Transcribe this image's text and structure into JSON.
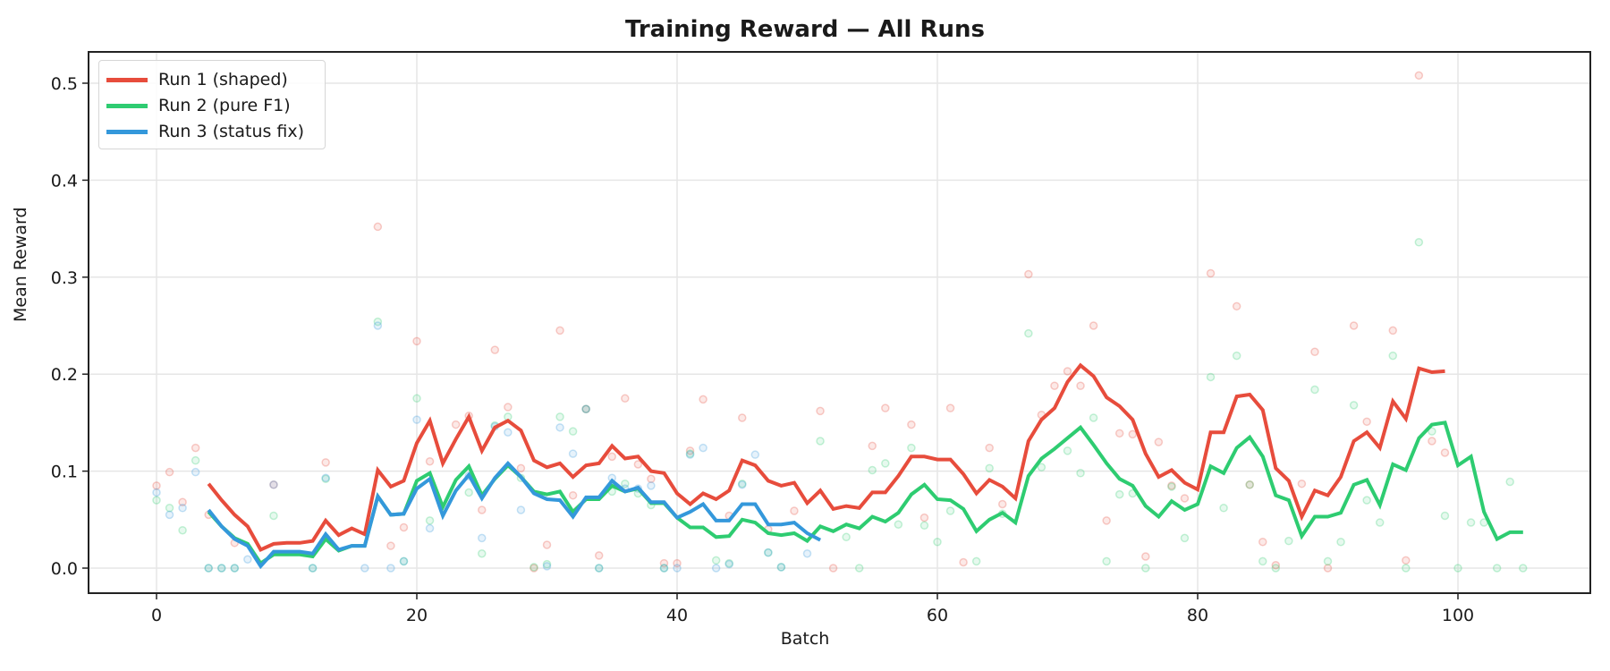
{
  "chart_data": {
    "type": "line",
    "title": "Training Reward — All Runs",
    "xlabel": "Batch",
    "ylabel": "Mean Reward",
    "xlim": [
      -5,
      111
    ],
    "ylim": [
      -0.027,
      0.53
    ],
    "xticks": [
      0,
      20,
      40,
      60,
      80,
      100
    ],
    "yticks": [
      0.0,
      0.1,
      0.2,
      0.3,
      0.4,
      0.5
    ],
    "xtick_labels": [
      "0",
      "20",
      "40",
      "60",
      "80",
      "100"
    ],
    "ytick_labels": [
      "0.0",
      "0.1",
      "0.2",
      "0.3",
      "0.4",
      "0.5"
    ],
    "grid": true,
    "legend_position": "upper left",
    "series": [
      {
        "name": "Run 1 (shaped)",
        "color": "#e74c3c",
        "x_start": 4,
        "values": [
          0.087,
          0.07,
          0.055,
          0.043,
          0.019,
          0.025,
          0.026,
          0.026,
          0.028,
          0.049,
          0.034,
          0.041,
          0.035,
          0.101,
          0.084,
          0.09,
          0.129,
          0.152,
          0.108,
          0.133,
          0.156,
          0.121,
          0.145,
          0.152,
          0.142,
          0.111,
          0.104,
          0.108,
          0.094,
          0.106,
          0.108,
          0.126,
          0.113,
          0.115,
          0.1,
          0.098,
          0.077,
          0.066,
          0.077,
          0.071,
          0.08,
          0.111,
          0.106,
          0.09,
          0.085,
          0.088,
          0.067,
          0.08,
          0.061,
          0.064,
          0.062,
          0.078,
          0.078,
          0.095,
          0.115,
          0.115,
          0.112,
          0.112,
          0.097,
          0.077,
          0.091,
          0.084,
          0.072,
          0.131,
          0.153,
          0.165,
          0.192,
          0.209,
          0.198,
          0.176,
          0.167,
          0.153,
          0.118,
          0.094,
          0.101,
          0.088,
          0.081,
          0.14,
          0.14,
          0.177,
          0.179,
          0.163,
          0.103,
          0.09,
          0.053,
          0.08,
          0.075,
          0.094,
          0.131,
          0.14,
          0.124,
          0.172,
          0.154,
          0.206,
          0.202,
          0.203
        ],
        "raw_points": [
          [
            0,
            0.085
          ],
          [
            1,
            0.099
          ],
          [
            2,
            0.068
          ],
          [
            3,
            0.124
          ],
          [
            4,
            0.055
          ],
          [
            6,
            0.026
          ],
          [
            9,
            0.086
          ],
          [
            13,
            0.109
          ],
          [
            17,
            0.352
          ],
          [
            18,
            0.023
          ],
          [
            19,
            0.042
          ],
          [
            20,
            0.234
          ],
          [
            21,
            0.11
          ],
          [
            23,
            0.148
          ],
          [
            24,
            0.157
          ],
          [
            25,
            0.06
          ],
          [
            26,
            0.225
          ],
          [
            27,
            0.166
          ],
          [
            28,
            0.103
          ],
          [
            29,
            0.0
          ],
          [
            30,
            0.024
          ],
          [
            31,
            0.245
          ],
          [
            32,
            0.075
          ],
          [
            33,
            0.164
          ],
          [
            34,
            0.013
          ],
          [
            35,
            0.115
          ],
          [
            36,
            0.175
          ],
          [
            37,
            0.107
          ],
          [
            38,
            0.092
          ],
          [
            39,
            0.005
          ],
          [
            40,
            0.005
          ],
          [
            41,
            0.121
          ],
          [
            42,
            0.174
          ],
          [
            44,
            0.054
          ],
          [
            45,
            0.155
          ],
          [
            47,
            0.04
          ],
          [
            49,
            0.059
          ],
          [
            51,
            0.162
          ],
          [
            52,
            0.0
          ],
          [
            55,
            0.126
          ],
          [
            56,
            0.165
          ],
          [
            58,
            0.148
          ],
          [
            59,
            0.052
          ],
          [
            61,
            0.165
          ],
          [
            62,
            0.006
          ],
          [
            64,
            0.124
          ],
          [
            65,
            0.066
          ],
          [
            67,
            0.303
          ],
          [
            68,
            0.158
          ],
          [
            69,
            0.188
          ],
          [
            70,
            0.203
          ],
          [
            71,
            0.188
          ],
          [
            72,
            0.25
          ],
          [
            73,
            0.049
          ],
          [
            74,
            0.139
          ],
          [
            75,
            0.138
          ],
          [
            76,
            0.012
          ],
          [
            77,
            0.13
          ],
          [
            78,
            0.085
          ],
          [
            79,
            0.072
          ],
          [
            81,
            0.304
          ],
          [
            83,
            0.27
          ],
          [
            84,
            0.086
          ],
          [
            85,
            0.027
          ],
          [
            86,
            0.003
          ],
          [
            88,
            0.087
          ],
          [
            89,
            0.223
          ],
          [
            90,
            0.0
          ],
          [
            92,
            0.25
          ],
          [
            93,
            0.151
          ],
          [
            95,
            0.245
          ],
          [
            96,
            0.008
          ],
          [
            97,
            0.508
          ],
          [
            98,
            0.131
          ],
          [
            99,
            0.119
          ]
        ]
      },
      {
        "name": "Run 2 (pure F1)",
        "color": "#2ecc71",
        "x_start": 4,
        "values": [
          0.058,
          0.043,
          0.031,
          0.025,
          0.005,
          0.014,
          0.014,
          0.014,
          0.012,
          0.03,
          0.018,
          0.023,
          0.023,
          0.074,
          0.055,
          0.056,
          0.09,
          0.098,
          0.063,
          0.091,
          0.105,
          0.075,
          0.092,
          0.106,
          0.094,
          0.079,
          0.076,
          0.079,
          0.058,
          0.071,
          0.071,
          0.085,
          0.079,
          0.082,
          0.067,
          0.067,
          0.052,
          0.042,
          0.042,
          0.032,
          0.033,
          0.05,
          0.047,
          0.036,
          0.034,
          0.036,
          0.028,
          0.043,
          0.038,
          0.045,
          0.041,
          0.053,
          0.048,
          0.057,
          0.076,
          0.086,
          0.071,
          0.07,
          0.061,
          0.038,
          0.05,
          0.057,
          0.047,
          0.095,
          0.113,
          0.123,
          0.134,
          0.145,
          0.127,
          0.108,
          0.092,
          0.085,
          0.064,
          0.053,
          0.069,
          0.06,
          0.066,
          0.105,
          0.098,
          0.124,
          0.135,
          0.115,
          0.075,
          0.07,
          0.033,
          0.053,
          0.053,
          0.057,
          0.086,
          0.091,
          0.065,
          0.107,
          0.101,
          0.134,
          0.148,
          0.15,
          0.106,
          0.115,
          0.058,
          0.03,
          0.037,
          0.037
        ],
        "raw_points": [
          [
            0,
            0.07
          ],
          [
            1,
            0.062
          ],
          [
            2,
            0.039
          ],
          [
            3,
            0.111
          ],
          [
            4,
            0.0
          ],
          [
            5,
            0.0
          ],
          [
            6,
            0.0
          ],
          [
            9,
            0.054
          ],
          [
            12,
            0.0
          ],
          [
            13,
            0.092
          ],
          [
            17,
            0.254
          ],
          [
            19,
            0.007
          ],
          [
            20,
            0.175
          ],
          [
            21,
            0.049
          ],
          [
            24,
            0.078
          ],
          [
            25,
            0.015
          ],
          [
            26,
            0.147
          ],
          [
            27,
            0.156
          ],
          [
            28,
            0.093
          ],
          [
            29,
            0.001
          ],
          [
            30,
            0.004
          ],
          [
            31,
            0.156
          ],
          [
            32,
            0.141
          ],
          [
            33,
            0.164
          ],
          [
            34,
            0.0
          ],
          [
            35,
            0.079
          ],
          [
            36,
            0.087
          ],
          [
            37,
            0.077
          ],
          [
            38,
            0.065
          ],
          [
            39,
            0.0
          ],
          [
            41,
            0.118
          ],
          [
            43,
            0.008
          ],
          [
            44,
            0.005
          ],
          [
            45,
            0.087
          ],
          [
            47,
            0.016
          ],
          [
            48,
            0.001
          ],
          [
            51,
            0.131
          ],
          [
            53,
            0.032
          ],
          [
            54,
            0.0
          ],
          [
            55,
            0.101
          ],
          [
            56,
            0.108
          ],
          [
            57,
            0.045
          ],
          [
            58,
            0.124
          ],
          [
            59,
            0.044
          ],
          [
            60,
            0.027
          ],
          [
            61,
            0.059
          ],
          [
            63,
            0.007
          ],
          [
            64,
            0.103
          ],
          [
            65,
            0.056
          ],
          [
            67,
            0.242
          ],
          [
            68,
            0.104
          ],
          [
            70,
            0.121
          ],
          [
            71,
            0.098
          ],
          [
            72,
            0.155
          ],
          [
            73,
            0.007
          ],
          [
            74,
            0.076
          ],
          [
            75,
            0.077
          ],
          [
            76,
            0.0
          ],
          [
            78,
            0.084
          ],
          [
            79,
            0.031
          ],
          [
            81,
            0.197
          ],
          [
            82,
            0.062
          ],
          [
            83,
            0.219
          ],
          [
            84,
            0.086
          ],
          [
            85,
            0.007
          ],
          [
            86,
            0.0
          ],
          [
            87,
            0.028
          ],
          [
            89,
            0.184
          ],
          [
            90,
            0.007
          ],
          [
            91,
            0.027
          ],
          [
            92,
            0.168
          ],
          [
            93,
            0.07
          ],
          [
            94,
            0.047
          ],
          [
            95,
            0.219
          ],
          [
            96,
            0.0
          ],
          [
            97,
            0.336
          ],
          [
            98,
            0.141
          ],
          [
            99,
            0.054
          ],
          [
            100,
            0.0
          ],
          [
            101,
            0.047
          ],
          [
            102,
            0.047
          ],
          [
            103,
            0.0
          ],
          [
            104,
            0.089
          ],
          [
            105,
            0.0
          ]
        ]
      },
      {
        "name": "Run 3 (status fix)",
        "color": "#3498db",
        "x_start": 4,
        "values": [
          0.06,
          0.043,
          0.03,
          0.023,
          0.002,
          0.017,
          0.017,
          0.017,
          0.015,
          0.035,
          0.019,
          0.023,
          0.023,
          0.074,
          0.055,
          0.056,
          0.082,
          0.092,
          0.054,
          0.08,
          0.096,
          0.072,
          0.093,
          0.108,
          0.094,
          0.077,
          0.071,
          0.07,
          0.053,
          0.073,
          0.073,
          0.09,
          0.079,
          0.083,
          0.068,
          0.068,
          0.052,
          0.058,
          0.066,
          0.049,
          0.049,
          0.066,
          0.066,
          0.045,
          0.045,
          0.047,
          0.036,
          0.029
        ],
        "raw_points": [
          [
            0,
            0.078
          ],
          [
            1,
            0.055
          ],
          [
            2,
            0.062
          ],
          [
            3,
            0.099
          ],
          [
            4,
            0.0
          ],
          [
            5,
            0.0
          ],
          [
            6,
            0.0
          ],
          [
            7,
            0.009
          ],
          [
            9,
            0.086
          ],
          [
            12,
            0.0
          ],
          [
            13,
            0.093
          ],
          [
            16,
            0.0
          ],
          [
            17,
            0.25
          ],
          [
            18,
            0.0
          ],
          [
            19,
            0.007
          ],
          [
            20,
            0.153
          ],
          [
            21,
            0.041
          ],
          [
            24,
            0.095
          ],
          [
            25,
            0.031
          ],
          [
            26,
            0.146
          ],
          [
            27,
            0.14
          ],
          [
            28,
            0.06
          ],
          [
            30,
            0.002
          ],
          [
            31,
            0.145
          ],
          [
            32,
            0.118
          ],
          [
            33,
            0.164
          ],
          [
            34,
            0.0
          ],
          [
            35,
            0.093
          ],
          [
            36,
            0.082
          ],
          [
            37,
            0.082
          ],
          [
            38,
            0.085
          ],
          [
            39,
            0.0
          ],
          [
            40,
            0.0
          ],
          [
            41,
            0.117
          ],
          [
            42,
            0.124
          ],
          [
            43,
            0.0
          ],
          [
            44,
            0.004
          ],
          [
            45,
            0.086
          ],
          [
            46,
            0.117
          ],
          [
            47,
            0.016
          ],
          [
            48,
            0.001
          ],
          [
            50,
            0.015
          ]
        ]
      }
    ]
  },
  "legend": {
    "items": [
      {
        "label": "Run 1 (shaped)",
        "color": "#e74c3c"
      },
      {
        "label": "Run 2 (pure F1)",
        "color": "#2ecc71"
      },
      {
        "label": "Run 3 (status fix)",
        "color": "#3498db"
      }
    ]
  }
}
